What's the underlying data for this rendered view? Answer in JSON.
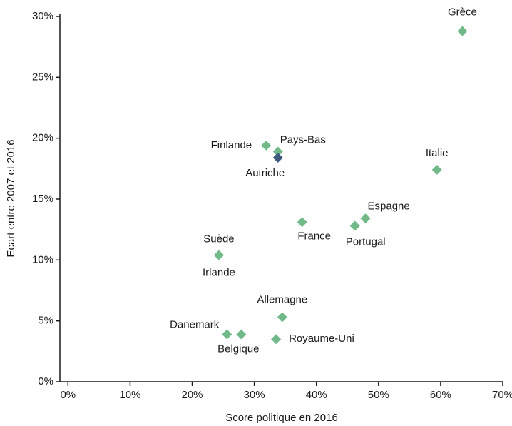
{
  "chart_data": {
    "type": "scatter",
    "x_label": "Score politique en 2016",
    "y_label": "Ecart entre 2007 et 2016",
    "xlim": [
      -1.3,
      70
    ],
    "ylim": [
      0,
      30
    ],
    "xticks": [
      {
        "value": 0,
        "label": "0%"
      },
      {
        "value": 10,
        "label": "10%"
      },
      {
        "value": 20,
        "label": "20%"
      },
      {
        "value": 30,
        "label": "30%"
      },
      {
        "value": 40,
        "label": "40%"
      },
      {
        "value": 50,
        "label": "50%"
      },
      {
        "value": 60,
        "label": "60%"
      },
      {
        "value": 70,
        "label": "70%"
      }
    ],
    "yticks": [
      {
        "value": 0,
        "label": "0%"
      },
      {
        "value": 5,
        "label": "5%"
      },
      {
        "value": 10,
        "label": "10%"
      },
      {
        "value": 15,
        "label": "15%"
      },
      {
        "value": 20,
        "label": "20%"
      },
      {
        "value": 25,
        "label": "25%"
      },
      {
        "value": 30,
        "label": "30%"
      }
    ],
    "points": [
      {
        "label": "Grèce",
        "x": 63.5,
        "y": 28.8,
        "color": "#72b98a"
      },
      {
        "label": "Italie",
        "x": 59.4,
        "y": 17.4,
        "color": "#72b98a"
      },
      {
        "label": "Finlande",
        "x": 31.9,
        "y": 19.4,
        "color": "#72b98a"
      },
      {
        "label": "Pays-Bas",
        "x": 33.8,
        "y": 18.9,
        "color": "#72b98a"
      },
      {
        "label": "Autriche",
        "x": 33.8,
        "y": 18.4,
        "color": "#3e5a7e"
      },
      {
        "label": "Espagne",
        "x": 47.9,
        "y": 13.4,
        "color": "#72b98a"
      },
      {
        "label": "Portugal",
        "x": 46.2,
        "y": 12.8,
        "color": "#72b98a"
      },
      {
        "label": "France",
        "x": 37.7,
        "y": 13.1,
        "color": "#72b98a"
      },
      {
        "label": "Suède",
        "x": 24.3,
        "y": 10.4,
        "color": "#72b98a"
      },
      {
        "label": "Irlande",
        "x": 24.3,
        "y": 10.4,
        "color": "#72b98a"
      },
      {
        "label": "Allemagne",
        "x": 34.5,
        "y": 5.3,
        "color": "#72b98a"
      },
      {
        "label": "Danemark",
        "x": 25.6,
        "y": 3.9,
        "color": "#72b98a"
      },
      {
        "label": "Belgique",
        "x": 27.9,
        "y": 3.9,
        "color": "#72b98a"
      },
      {
        "label": "Royaume-Uni",
        "x": 33.5,
        "y": 3.5,
        "color": "#72b98a"
      }
    ]
  }
}
